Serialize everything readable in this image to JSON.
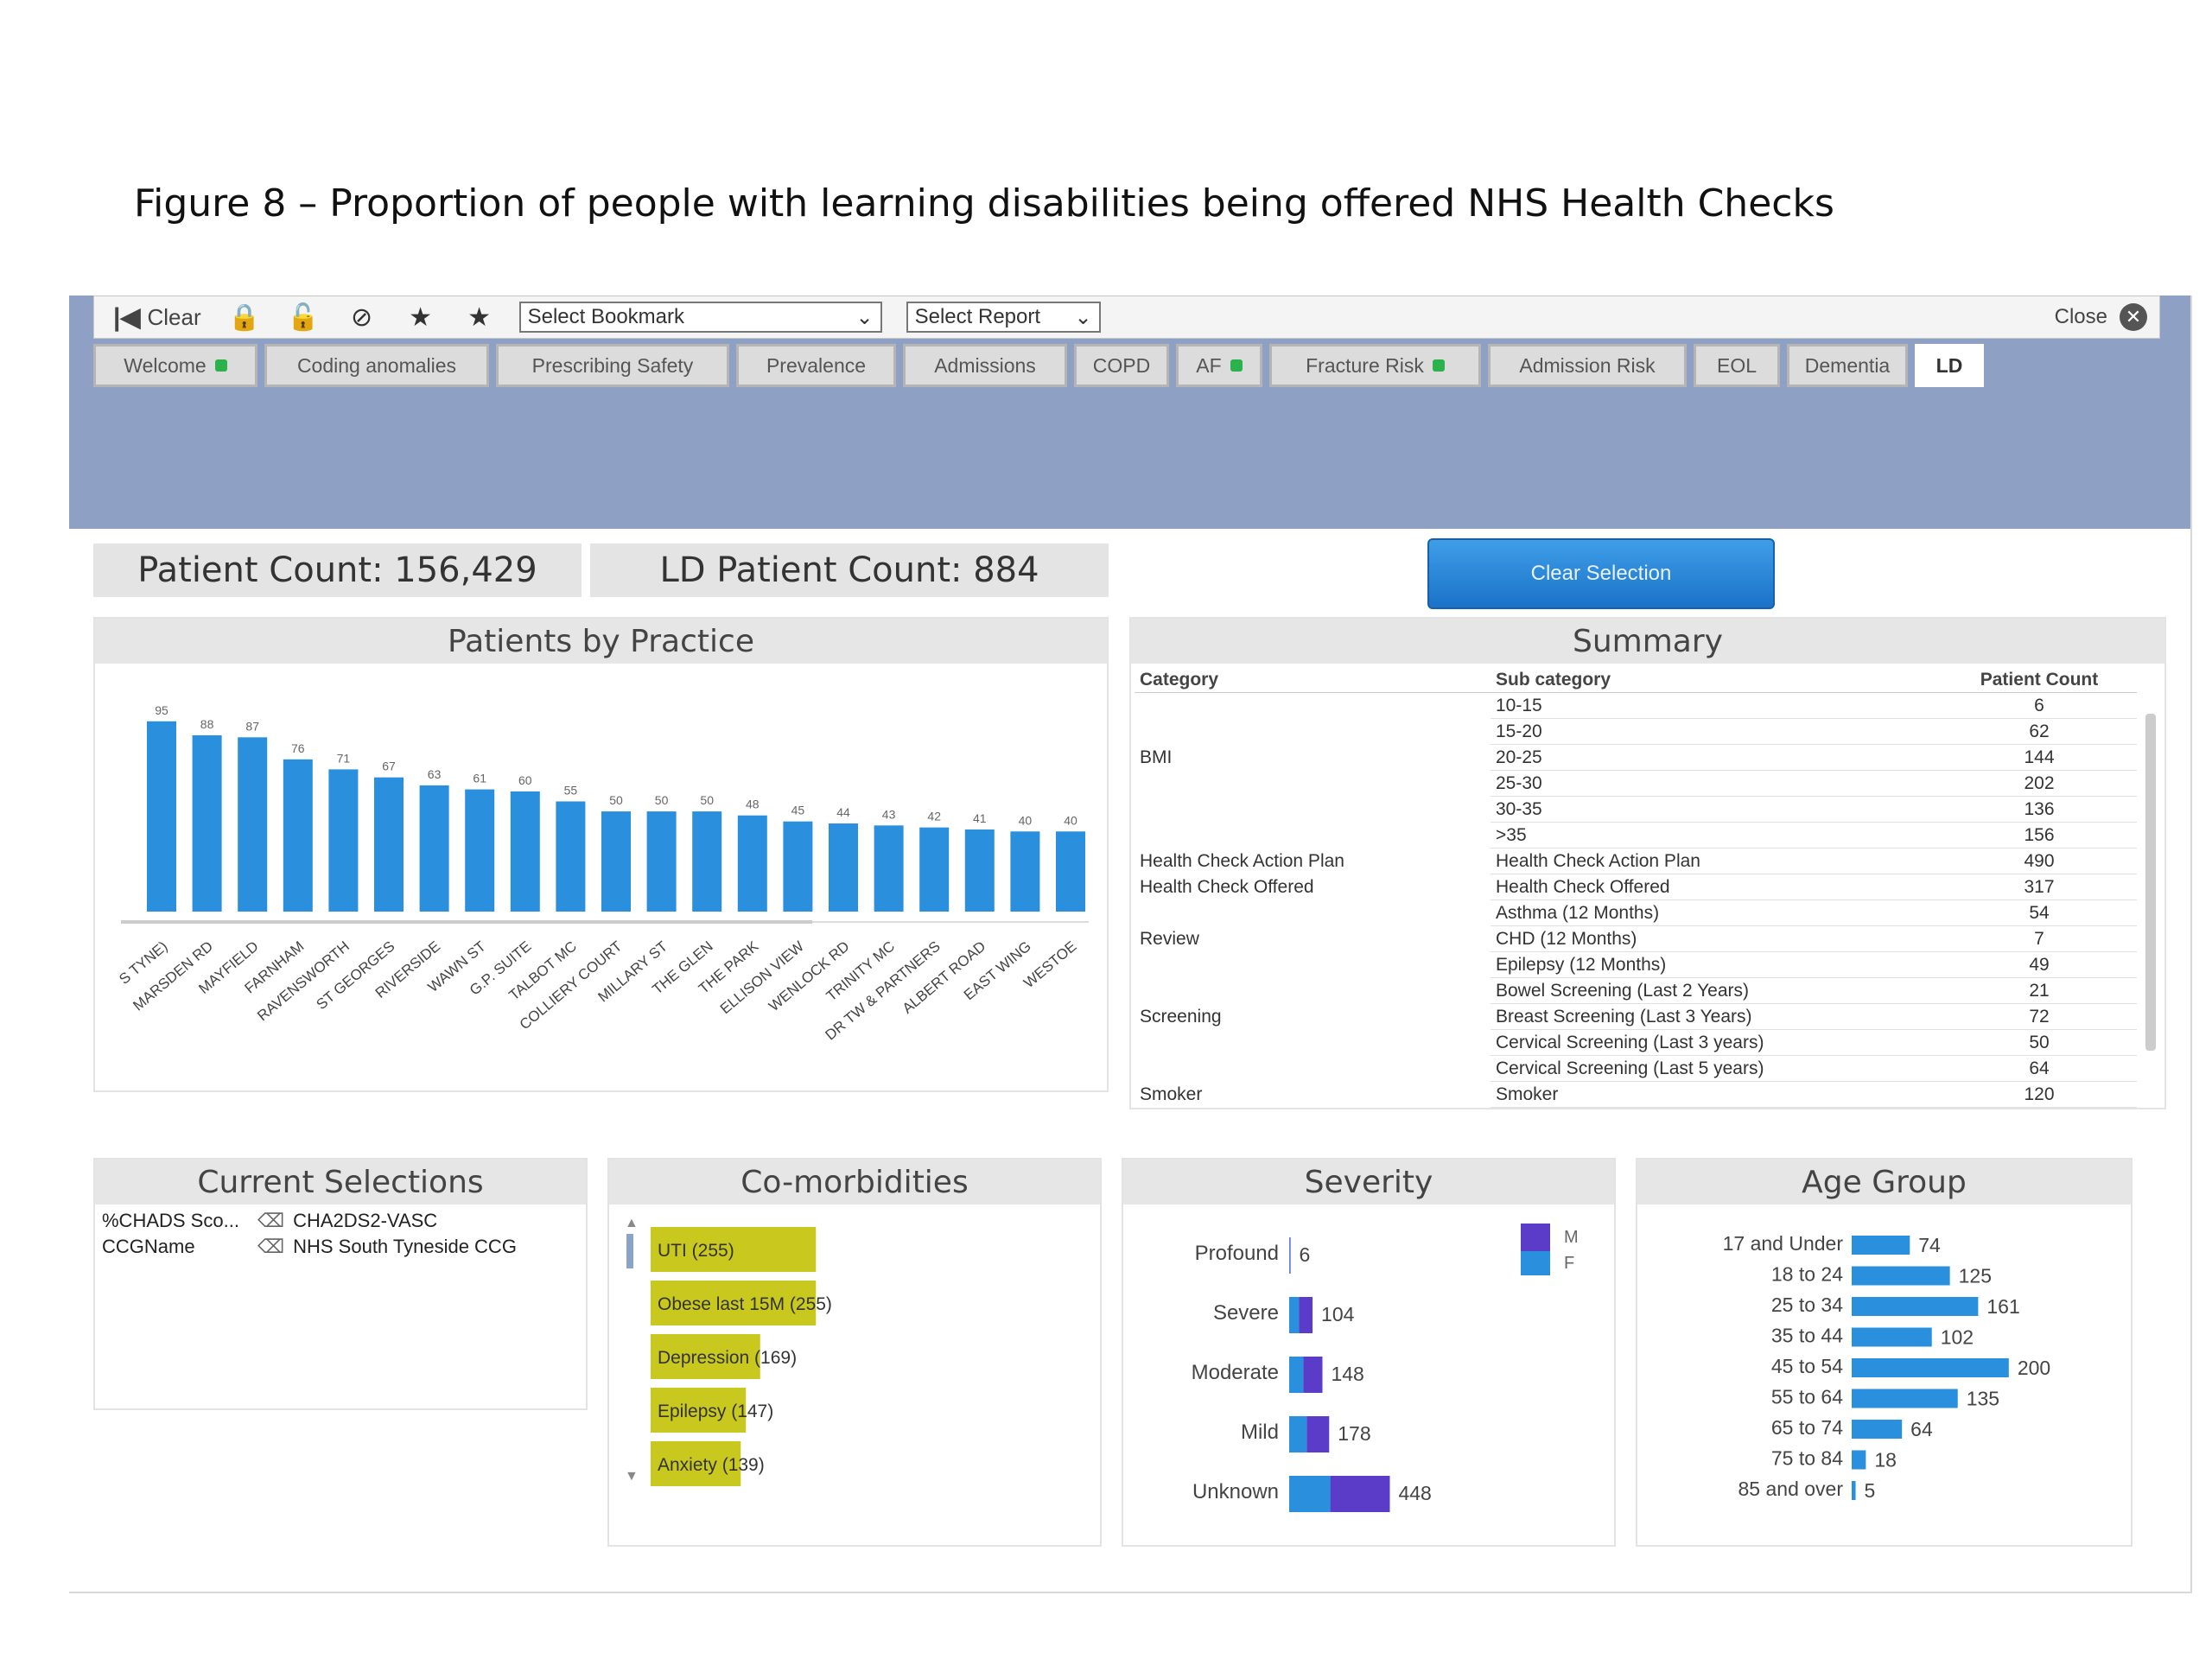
{
  "caption": "Figure 8 – Proportion of people with learning disabilities being offered NHS Health Checks",
  "toolbar": {
    "clear_label": "Clear",
    "bookmark_select": "Select Bookmark",
    "report_select": "Select Report",
    "close_label": "Close",
    "icons": [
      "first-icon",
      "lock-icon",
      "unlock-icon",
      "no-entry-icon",
      "star-add-icon",
      "star-remove-icon",
      "close-icon"
    ]
  },
  "tabs": [
    {
      "label": "Welcome",
      "dot": true
    },
    {
      "label": "Coding anomalies",
      "dot": false
    },
    {
      "label": "Prescribing Safety",
      "dot": false
    },
    {
      "label": "Prevalence",
      "dot": false
    },
    {
      "label": "Admissions",
      "dot": false
    },
    {
      "label": "COPD",
      "dot": false
    },
    {
      "label": "AF",
      "dot": true
    },
    {
      "label": "Fracture Risk",
      "dot": true
    },
    {
      "label": "Admission Risk",
      "dot": false
    },
    {
      "label": "EOL",
      "dot": false
    },
    {
      "label": "Dementia",
      "dot": false
    },
    {
      "label": "LD",
      "dot": false,
      "active": true
    }
  ],
  "counts": {
    "patient_count": "Patient Count: 156,429",
    "ld_patient_count": "LD Patient Count: 884"
  },
  "clear_selection_label": "Clear Selection",
  "colors": {
    "bar_blue": "#2a8fdc",
    "purple": "#5a3cc8",
    "yellow": "#c8c81e",
    "banner": "#8ea0c4"
  },
  "practice_panel": {
    "title": "Patients by Practice"
  },
  "summary": {
    "title": "Summary",
    "headers": {
      "category": "Category",
      "sub": "Sub category",
      "count": "Patient Count"
    },
    "rows": [
      {
        "category": "",
        "sub": "10-15",
        "count": "6"
      },
      {
        "category": "",
        "sub": "15-20",
        "count": "62"
      },
      {
        "category": "BMI",
        "sub": "20-25",
        "count": "144"
      },
      {
        "category": "",
        "sub": "25-30",
        "count": "202"
      },
      {
        "category": "",
        "sub": "30-35",
        "count": "136"
      },
      {
        "category": "",
        "sub": ">35",
        "count": "156"
      },
      {
        "category": "Health Check Action Plan",
        "sub": "Health Check Action Plan",
        "count": "490"
      },
      {
        "category": "Health Check Offered",
        "sub": "Health Check Offered",
        "count": "317"
      },
      {
        "category": "",
        "sub": "Asthma (12 Months)",
        "count": "54"
      },
      {
        "category": "Review",
        "sub": "CHD (12 Months)",
        "count": "7"
      },
      {
        "category": "",
        "sub": "Epilepsy (12 Months)",
        "count": "49"
      },
      {
        "category": "",
        "sub": "Bowel Screening (Last 2 Years)",
        "count": "21"
      },
      {
        "category": "Screening",
        "sub": "Breast Screening (Last 3 Years)",
        "count": "72"
      },
      {
        "category": "",
        "sub": "Cervical Screening (Last 3 years)",
        "count": "50"
      },
      {
        "category": "",
        "sub": "Cervical Screening (Last 5 years)",
        "count": "64"
      },
      {
        "category": "Smoker",
        "sub": "Smoker",
        "count": "120"
      }
    ]
  },
  "current_selections": {
    "title": "Current Selections",
    "items": [
      {
        "field": "%CHADS Sco...",
        "value": "CHA2DS2-VASC"
      },
      {
        "field": "CCGName",
        "value": "NHS South Tyneside CCG"
      }
    ]
  },
  "comorbidities": {
    "title": "Co-morbidities"
  },
  "severity": {
    "title": "Severity",
    "legend": [
      "M",
      "F"
    ]
  },
  "age_group": {
    "title": "Age Group"
  },
  "chart_data": [
    {
      "type": "bar",
      "title": "Patients by Practice",
      "categories": [
        "S TYNE)",
        "MARSDEN RD",
        "MAYFIELD",
        "FARNHAM",
        "RAVENSWORTH",
        "ST GEORGES",
        "RIVERSIDE",
        "WAWN ST",
        "G.P. SUITE",
        "TALBOT MC",
        "COLLIERY COURT",
        "MILLARY ST",
        "THE GLEN",
        "THE PARK",
        "ELLISON VIEW",
        "WENLOCK RD",
        "TRINITY MC",
        "DR TW & PARTNERS",
        "ALBERT ROAD",
        "EAST WING",
        "WESTOE"
      ],
      "values": [
        95,
        88,
        87,
        76,
        71,
        67,
        63,
        61,
        60,
        55,
        50,
        50,
        50,
        48,
        45,
        44,
        43,
        42,
        41,
        40,
        40
      ],
      "ylim": [
        0,
        110
      ]
    },
    {
      "type": "bar",
      "title": "Co-morbidities",
      "categories": [
        "UTI",
        "Obese last 15M",
        "Depression",
        "Epilepsy",
        "Anxiety"
      ],
      "values": [
        255,
        255,
        169,
        147,
        139
      ],
      "labels": [
        "UTI (255)",
        "Obese last 15M (255)",
        "Depression (169)",
        "Epilepsy (147)",
        "Anxiety (139)"
      ],
      "xlim": [
        0,
        300
      ]
    },
    {
      "type": "bar",
      "title": "Severity",
      "categories": [
        "Profound",
        "Severe",
        "Moderate",
        "Mild",
        "Unknown"
      ],
      "series": [
        {
          "name": "M",
          "values": [
            3,
            60,
            85,
            100,
            265
          ]
        },
        {
          "name": "F",
          "values": [
            3,
            44,
            63,
            78,
            183
          ]
        }
      ],
      "totals": [
        6,
        104,
        148,
        178,
        448
      ],
      "xlim": [
        0,
        500
      ]
    },
    {
      "type": "bar",
      "title": "Age Group",
      "categories": [
        "17 and Under",
        "18 to 24",
        "25 to 34",
        "35 to 44",
        "45 to 54",
        "55 to 64",
        "65 to 74",
        "75 to 84",
        "85 and over"
      ],
      "values": [
        74,
        125,
        161,
        102,
        200,
        135,
        64,
        18,
        5
      ],
      "xlim": [
        0,
        220
      ]
    }
  ]
}
